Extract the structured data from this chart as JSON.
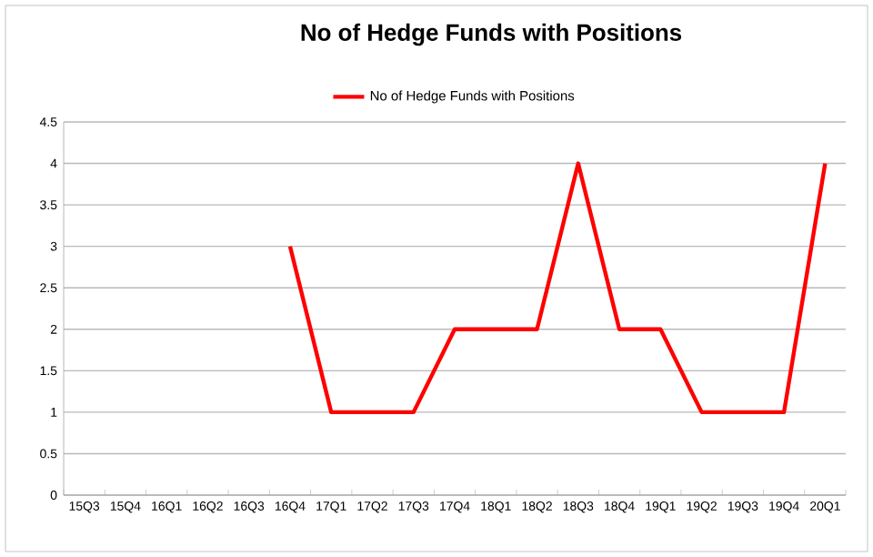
{
  "chart_data": {
    "type": "line",
    "title": "No of Hedge Funds with Positions",
    "categories": [
      "15Q3",
      "15Q4",
      "16Q1",
      "16Q2",
      "16Q3",
      "16Q4",
      "17Q1",
      "17Q2",
      "17Q3",
      "17Q4",
      "18Q1",
      "18Q2",
      "18Q3",
      "18Q4",
      "19Q1",
      "19Q2",
      "19Q3",
      "19Q4",
      "20Q1"
    ],
    "series": [
      {
        "name": "No of Hedge Funds with Positions",
        "color": "#ff0000",
        "values": [
          null,
          null,
          null,
          null,
          null,
          3,
          1,
          1,
          1,
          2,
          2,
          2,
          4,
          2,
          2,
          1,
          1,
          1,
          4
        ]
      }
    ],
    "ylim": [
      0,
      4.5
    ],
    "yticks": [
      0,
      0.5,
      1,
      1.5,
      2,
      2.5,
      3,
      3.5,
      4,
      4.5
    ],
    "grid": "y",
    "legend": "top",
    "marker": "none",
    "line_style": "solid"
  }
}
